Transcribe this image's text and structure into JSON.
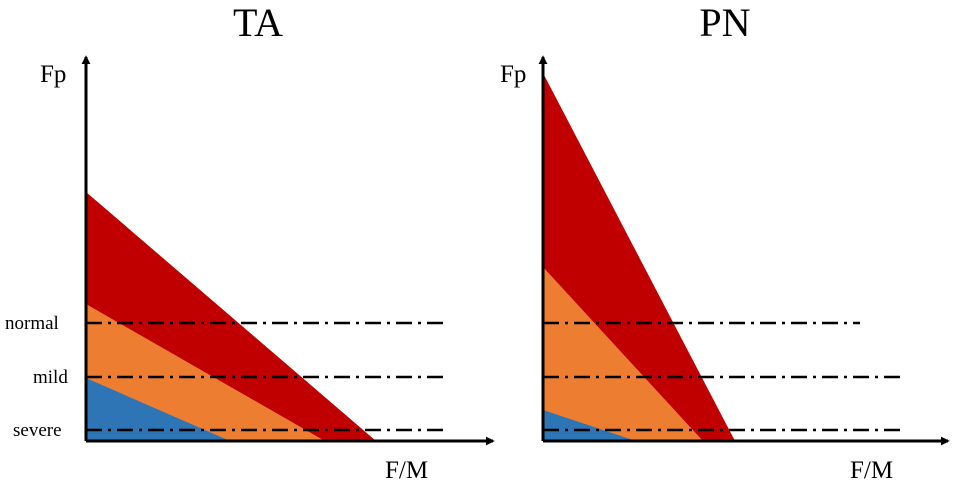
{
  "panels": [
    {
      "title": "TA",
      "y_axis_label": "Fp",
      "x_axis_label": "F/M",
      "level_labels": {
        "normal": "normal",
        "mild": "mild",
        "severe": "severe"
      }
    },
    {
      "title": "PN",
      "y_axis_label": "Fp",
      "x_axis_label": "F/M"
    }
  ],
  "colors": {
    "red_region": "#c00000",
    "orange_region": "#ed7d31",
    "blue_region": "#2e75b6",
    "axes": "#000000"
  }
}
